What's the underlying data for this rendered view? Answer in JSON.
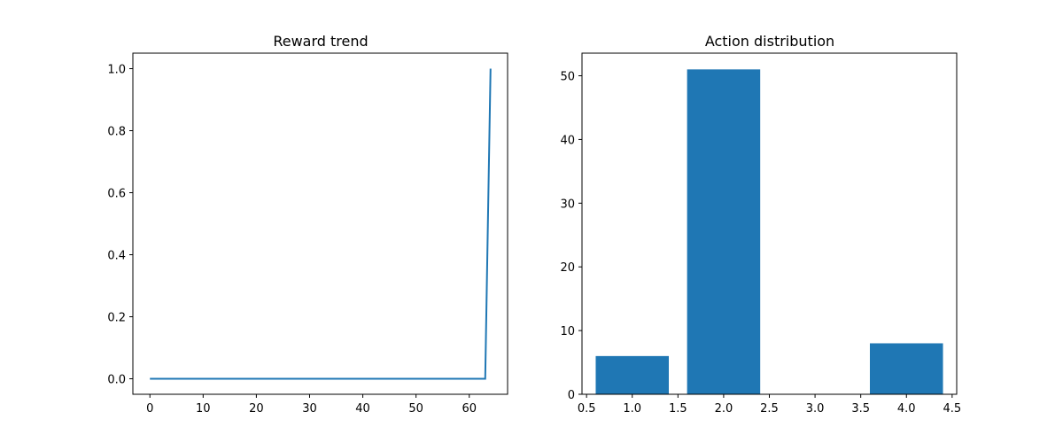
{
  "chart_data": [
    {
      "type": "line",
      "title": "Reward trend",
      "xlabel": "",
      "ylabel": "",
      "xlim": [
        -3.2,
        67.2
      ],
      "ylim": [
        -0.05,
        1.05
      ],
      "xticks": [
        0,
        10,
        20,
        30,
        40,
        50,
        60
      ],
      "yticks": [
        0.0,
        0.2,
        0.4,
        0.6,
        0.8,
        1.0
      ],
      "xtick_labels": [
        "0",
        "10",
        "20",
        "30",
        "40",
        "50",
        "60"
      ],
      "ytick_labels": [
        "0.0",
        "0.2",
        "0.4",
        "0.6",
        "0.8",
        "1.0"
      ],
      "series": [
        {
          "color": "#1f77b4",
          "x": [
            0,
            63,
            64
          ],
          "y": [
            0,
            0,
            1
          ]
        }
      ]
    },
    {
      "type": "bar",
      "title": "Action distribution",
      "xlabel": "",
      "ylabel": "",
      "xlim": [
        0.45,
        4.55
      ],
      "ylim": [
        0,
        53.55
      ],
      "xticks": [
        0.5,
        1.0,
        1.5,
        2.0,
        2.5,
        3.0,
        3.5,
        4.0,
        4.5
      ],
      "yticks": [
        0,
        10,
        20,
        30,
        40,
        50
      ],
      "xtick_labels": [
        "0.5",
        "1.0",
        "1.5",
        "2.0",
        "2.5",
        "3.0",
        "3.5",
        "4.0",
        "4.5"
      ],
      "ytick_labels": [
        "0",
        "10",
        "20",
        "30",
        "40",
        "50"
      ],
      "bar_width": 0.8,
      "color": "#1f77b4",
      "categories": [
        1,
        2,
        3,
        4
      ],
      "values": [
        6,
        51,
        0,
        8
      ]
    }
  ]
}
